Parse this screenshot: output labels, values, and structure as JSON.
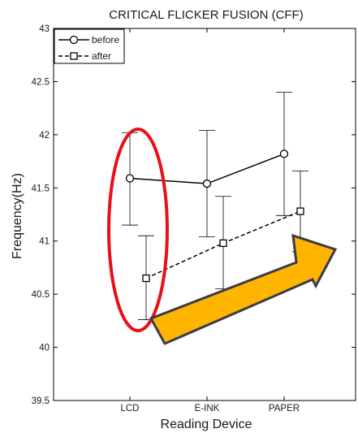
{
  "chart_data": {
    "type": "line",
    "title": "CRITICAL FLICKER FUSION (CFF)",
    "xlabel": "Reading Device",
    "ylabel": "Frequency(Hz)",
    "categories": [
      "LCD",
      "E-INK",
      "PAPER"
    ],
    "ylim": [
      39.5,
      43
    ],
    "yticks": [
      39.5,
      40,
      40.5,
      41,
      41.5,
      42,
      42.5,
      43
    ],
    "ytick_labels": [
      "39.5",
      "40",
      "40.5",
      "41",
      "41.5",
      "42",
      "42.5",
      "43"
    ],
    "grid": false,
    "legend_position": "top-left",
    "series": [
      {
        "name": "before",
        "line_style": "solid",
        "marker": "circle",
        "color": "#000000",
        "values": [
          41.59,
          41.54,
          41.82
        ],
        "error_low": [
          41.15,
          41.04,
          41.24
        ],
        "error_high": [
          42.02,
          42.04,
          42.4
        ]
      },
      {
        "name": "after",
        "line_style": "dashed",
        "marker": "square",
        "color": "#000000",
        "values": [
          40.65,
          40.98,
          41.28
        ],
        "error_low": [
          40.26,
          40.55,
          40.9
        ],
        "error_high": [
          41.05,
          41.42,
          41.66
        ]
      }
    ],
    "annotations": [
      {
        "type": "ellipse",
        "color": "#e8101a",
        "around": "LCD"
      },
      {
        "type": "arrow",
        "color": "#ffb400",
        "outline": "#3a3a4a",
        "direction": "up-right"
      }
    ]
  }
}
